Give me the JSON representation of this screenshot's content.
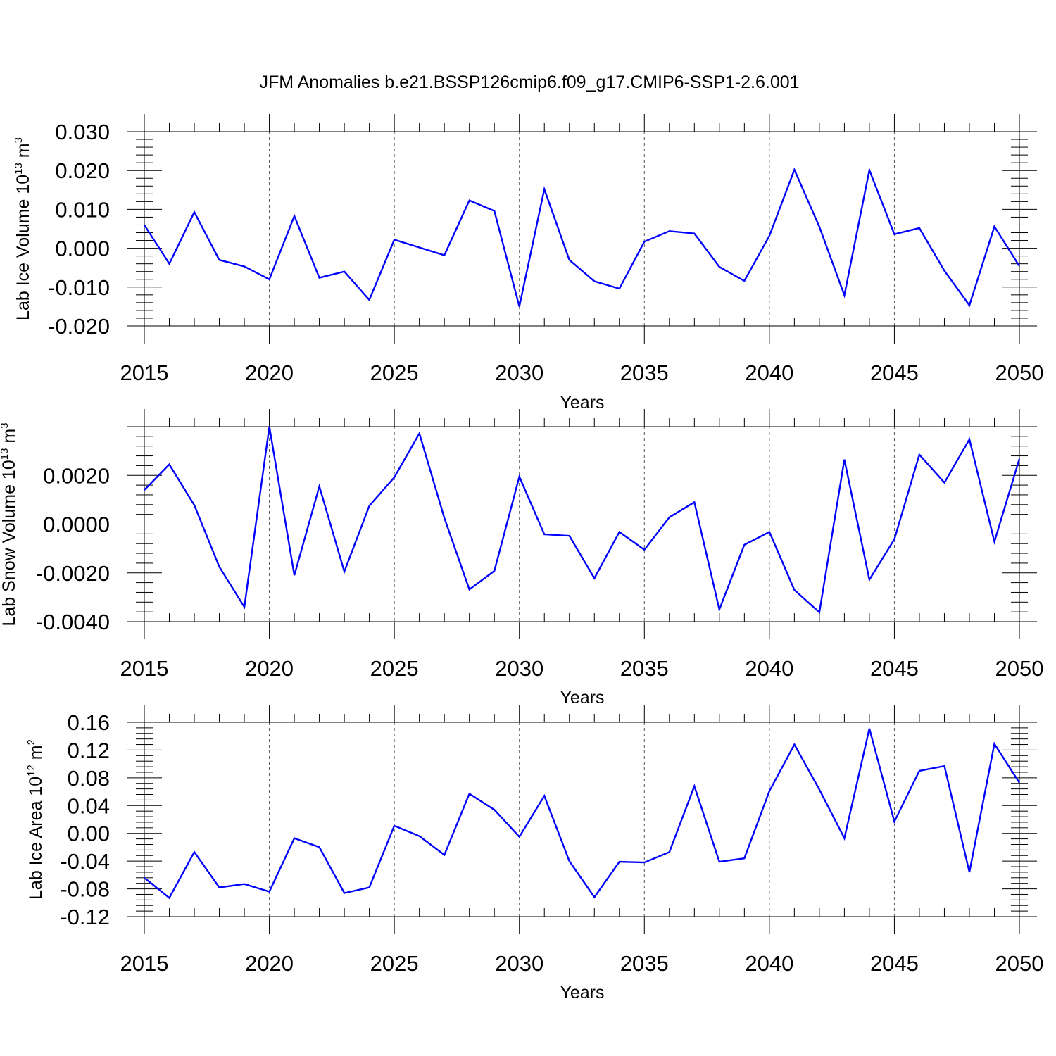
{
  "title": "JFM Anomalies b.e21.BSSP126cmip6.f09_g17.CMIP6-SSP1-2.6.001",
  "colors": {
    "line": "#0000ff",
    "axis": "#000000",
    "grid": "#555555"
  },
  "chart_data": [
    {
      "type": "line",
      "ylabel": "Lab Ice Volume",
      "ylabel_unit": "10",
      "ylabel_exp": "13",
      "ylabel_tail": "m",
      "ylabel_tail_exp": "3",
      "xlabel": "Years",
      "xlim": [
        2015,
        2050
      ],
      "ylim": [
        -0.02,
        0.03
      ],
      "x_ticks": [
        2015,
        2020,
        2025,
        2030,
        2035,
        2040,
        2045,
        2050
      ],
      "x_tick_labels": [
        "2015",
        "2020",
        "2025",
        "2030",
        "2035",
        "2040",
        "2045",
        "2050"
      ],
      "y_ticks": [
        -0.02,
        -0.01,
        0.0,
        0.01,
        0.02,
        0.03
      ],
      "y_tick_labels": [
        "-0.020",
        "-0.010",
        "0.000",
        "0.010",
        "0.020",
        "0.030"
      ],
      "grid": "vertical dashed at major x ticks",
      "series": [
        {
          "x": [
            2015,
            2016,
            2017,
            2018,
            2019,
            2020,
            2021,
            2022,
            2023,
            2024,
            2025,
            2026,
            2027,
            2028,
            2029,
            2030,
            2031,
            2032,
            2033,
            2034,
            2035,
            2036,
            2037,
            2038,
            2039,
            2040,
            2041,
            2042,
            2043,
            2044,
            2045,
            2046,
            2047,
            2048,
            2049,
            2050
          ],
          "values": [
            0.006,
            -0.004,
            0.0093,
            -0.003,
            -0.0047,
            -0.008,
            0.0083,
            -0.0076,
            -0.006,
            -0.0133,
            0.0022,
            0.0002,
            -0.0018,
            0.0123,
            0.0096,
            -0.015,
            0.0152,
            -0.003,
            -0.0085,
            -0.0104,
            0.0017,
            0.0044,
            0.0038,
            -0.0048,
            -0.0084,
            0.0032,
            0.0202,
            0.0055,
            -0.0121,
            0.0201,
            0.0036,
            0.0052,
            -0.0058,
            -0.0147,
            0.0056,
            -0.0046
          ]
        }
      ]
    },
    {
      "type": "line",
      "ylabel": "Lab Snow Volume",
      "ylabel_unit": "10",
      "ylabel_exp": "13",
      "ylabel_tail": "m",
      "ylabel_tail_exp": "3",
      "xlabel": "Years",
      "xlim": [
        2015,
        2050
      ],
      "ylim": [
        -0.004,
        0.004
      ],
      "x_ticks": [
        2015,
        2020,
        2025,
        2030,
        2035,
        2040,
        2045,
        2050
      ],
      "x_tick_labels": [
        "2015",
        "2020",
        "2025",
        "2030",
        "2035",
        "2040",
        "2045",
        "2050"
      ],
      "y_ticks": [
        -0.004,
        -0.002,
        0.0,
        0.002
      ],
      "y_tick_labels": [
        "-0.0040",
        "-0.0020",
        "0.0000",
        "0.0020"
      ],
      "grid": "vertical dashed at major x ticks",
      "series": [
        {
          "x": [
            2015,
            2016,
            2017,
            2018,
            2019,
            2020,
            2021,
            2022,
            2023,
            2024,
            2025,
            2026,
            2027,
            2028,
            2029,
            2030,
            2031,
            2032,
            2033,
            2034,
            2035,
            2036,
            2037,
            2038,
            2039,
            2040,
            2041,
            2042,
            2043,
            2044,
            2045,
            2046,
            2047,
            2048,
            2049,
            2050
          ],
          "values": [
            0.0014,
            0.00245,
            0.00078,
            -0.00175,
            -0.0034,
            0.004,
            -0.0021,
            0.00155,
            -0.00195,
            0.00075,
            0.00192,
            0.00372,
            0.00025,
            -0.00268,
            -0.00192,
            0.00195,
            -0.00042,
            -0.00048,
            -0.00222,
            -0.00032,
            -0.00105,
            0.00028,
            0.0009,
            -0.0035,
            -0.00085,
            -0.00032,
            -0.0027,
            -0.00362,
            0.00265,
            -0.00228,
            -0.00062,
            0.00285,
            0.0017,
            0.00348,
            -0.00072,
            0.00268
          ]
        }
      ]
    },
    {
      "type": "line",
      "ylabel": "Lab Ice Area",
      "ylabel_unit": "10",
      "ylabel_exp": "12",
      "ylabel_tail": "m",
      "ylabel_tail_exp": "2",
      "xlabel": "Years",
      "xlim": [
        2015,
        2050
      ],
      "ylim": [
        -0.12,
        0.16
      ],
      "x_ticks": [
        2015,
        2020,
        2025,
        2030,
        2035,
        2040,
        2045,
        2050
      ],
      "x_tick_labels": [
        "2015",
        "2020",
        "2025",
        "2030",
        "2035",
        "2040",
        "2045",
        "2050"
      ],
      "y_ticks": [
        -0.12,
        -0.08,
        -0.04,
        0.0,
        0.04,
        0.08,
        0.12,
        0.16
      ],
      "y_tick_labels": [
        "-0.12",
        "-0.08",
        "-0.04",
        "0.00",
        "0.04",
        "0.08",
        "0.12",
        "0.16"
      ],
      "grid": "vertical dashed at major x ticks",
      "series": [
        {
          "x": [
            2015,
            2016,
            2017,
            2018,
            2019,
            2020,
            2021,
            2022,
            2023,
            2024,
            2025,
            2026,
            2027,
            2028,
            2029,
            2030,
            2031,
            2032,
            2033,
            2034,
            2035,
            2036,
            2037,
            2038,
            2039,
            2040,
            2041,
            2042,
            2043,
            2044,
            2045,
            2046,
            2047,
            2048,
            2049,
            2050
          ],
          "values": [
            -0.064,
            -0.093,
            -0.027,
            -0.078,
            -0.073,
            -0.084,
            -0.007,
            -0.02,
            -0.086,
            -0.078,
            0.011,
            -0.004,
            -0.031,
            0.057,
            0.034,
            -0.005,
            0.054,
            -0.04,
            -0.092,
            -0.041,
            -0.042,
            -0.027,
            0.068,
            -0.041,
            -0.036,
            0.061,
            0.128,
            0.063,
            -0.007,
            0.151,
            0.017,
            0.09,
            0.097,
            -0.056,
            0.129,
            0.073
          ]
        }
      ]
    }
  ]
}
